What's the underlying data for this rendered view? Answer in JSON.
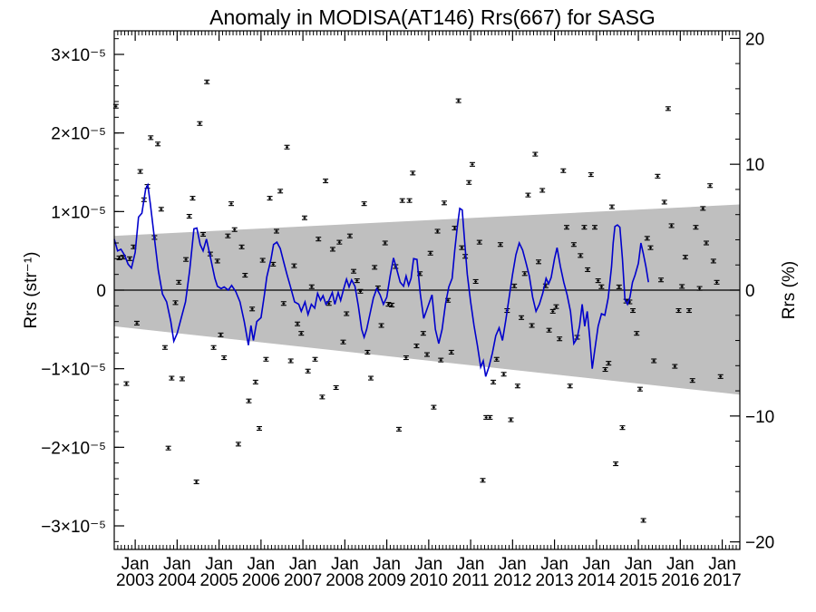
{
  "chart_data": {
    "type": "scatter",
    "title": "Anomaly in MODISA(AT146) Rrs(667) for SASG",
    "ylabel_left": "Rrs (str⁻¹)",
    "ylabel_right": "Rrs (%)",
    "xlim": [
      2002.5,
      2017.42
    ],
    "ylim": [
      -3.3e-05,
      3.3e-05
    ],
    "ylim_right": [
      -20.6,
      20.6
    ],
    "left_ticks": [
      {
        "value": 3e-05,
        "label": "3×10⁻⁵"
      },
      {
        "value": 2e-05,
        "label": "2×10⁻⁵"
      },
      {
        "value": 1e-05,
        "label": "1×10⁻⁵"
      },
      {
        "value": 0,
        "label": "0"
      },
      {
        "value": -1e-05,
        "label": "−1×10⁻⁵"
      },
      {
        "value": -2e-05,
        "label": "−2×10⁻⁵"
      },
      {
        "value": -3e-05,
        "label": "−3×10⁻⁵"
      }
    ],
    "right_ticks": [
      {
        "value": 20,
        "label": "20"
      },
      {
        "value": 10,
        "label": "10"
      },
      {
        "value": 0,
        "label": "0"
      },
      {
        "value": -10,
        "label": "−10"
      },
      {
        "value": -20,
        "label": "−20"
      }
    ],
    "x_month_label": "Jan",
    "x_years": [
      2003,
      2004,
      2005,
      2006,
      2007,
      2008,
      2009,
      2010,
      2011,
      2012,
      2013,
      2014,
      2015,
      2016,
      2017
    ],
    "band": {
      "start": 2002.5,
      "end": 2017.42,
      "upper": [
        6.9e-06,
        1.09e-05
      ],
      "lower": [
        -4.6e-06,
        -1.33e-05
      ]
    },
    "zero_line": 0,
    "colors": {
      "points": "#000000",
      "smooth": "#0000cc",
      "band": "#bfbfbf"
    },
    "points": [
      [
        2002.54,
        2.34e-05
      ],
      [
        2002.62,
        4.1e-06
      ],
      [
        2002.71,
        4.2e-06
      ],
      [
        2002.79,
        -1.19e-05
      ],
      [
        2002.87,
        4e-06
      ],
      [
        2002.96,
        5.5e-06
      ],
      [
        2003.04,
        -4.2e-06
      ],
      [
        2003.12,
        1.51e-05
      ],
      [
        2003.21,
        1.15e-05
      ],
      [
        2003.29,
        1.32e-05
      ],
      [
        2003.37,
        1.94e-05
      ],
      [
        2003.46,
        6.7e-06
      ],
      [
        2003.54,
        1.86e-05
      ],
      [
        2003.62,
        1.03e-05
      ],
      [
        2003.71,
        -7.3e-06
      ],
      [
        2003.79,
        -2.01e-05
      ],
      [
        2003.87,
        -1.12e-05
      ],
      [
        2003.96,
        -1.6e-06
      ],
      [
        2004.04,
        1e-06
      ],
      [
        2004.12,
        -1.13e-05
      ],
      [
        2004.21,
        3.9e-06
      ],
      [
        2004.29,
        9.4e-06
      ],
      [
        2004.37,
        1.17e-05
      ],
      [
        2004.46,
        -2.44e-05
      ],
      [
        2004.54,
        2.12e-05
      ],
      [
        2004.62,
        7.1e-06
      ],
      [
        2004.71,
        2.65e-05
      ],
      [
        2004.79,
        4.6e-06
      ],
      [
        2004.87,
        -7.3e-06
      ],
      [
        2004.96,
        3.7e-06
      ],
      [
        2005.04,
        -5.7e-06
      ],
      [
        2005.12,
        -8.6e-06
      ],
      [
        2005.21,
        6.9e-06
      ],
      [
        2005.29,
        1.1e-05
      ],
      [
        2005.37,
        7.7e-06
      ],
      [
        2005.46,
        -1.96e-05
      ],
      [
        2005.54,
        5.5e-06
      ],
      [
        2005.62,
        1.9e-06
      ],
      [
        2005.71,
        -1.41e-05
      ],
      [
        2005.79,
        -2.4e-06
      ],
      [
        2005.87,
        -1.17e-05
      ],
      [
        2005.96,
        -1.76e-05
      ],
      [
        2006.04,
        3.8e-06
      ],
      [
        2006.12,
        -8.8e-06
      ],
      [
        2006.21,
        1.17e-05
      ],
      [
        2006.29,
        3.3e-06
      ],
      [
        2006.37,
        7.5e-06
      ],
      [
        2006.46,
        1.26e-05
      ],
      [
        2006.54,
        -1.7e-06
      ],
      [
        2006.62,
        1.82e-05
      ],
      [
        2006.71,
        -9e-06
      ],
      [
        2006.79,
        3.1e-06
      ],
      [
        2006.87,
        -4.3e-06
      ],
      [
        2006.96,
        -5.5e-06
      ],
      [
        2007.04,
        9.2e-06
      ],
      [
        2007.12,
        -1.03e-05
      ],
      [
        2007.21,
        4.3e-07
      ],
      [
        2007.29,
        -8.8e-06
      ],
      [
        2007.37,
        6.5e-06
      ],
      [
        2007.46,
        -1.36e-05
      ],
      [
        2007.54,
        1.39e-05
      ],
      [
        2007.62,
        -1.7e-06
      ],
      [
        2007.71,
        5.2e-06
      ],
      [
        2007.79,
        -1.24e-05
      ],
      [
        2007.87,
        6.1e-06
      ],
      [
        2007.96,
        -6.6e-06
      ],
      [
        2008.04,
        -3e-06
      ],
      [
        2008.12,
        6.9e-06
      ],
      [
        2008.21,
        2.4e-06
      ],
      [
        2008.29,
        1.2e-06
      ],
      [
        2008.37,
        -1.5e-07
      ],
      [
        2008.46,
        1.1e-05
      ],
      [
        2008.54,
        -7.9e-06
      ],
      [
        2008.62,
        -1.12e-05
      ],
      [
        2008.71,
        2.9e-06
      ],
      [
        2008.79,
        2.9e-07
      ],
      [
        2008.87,
        -4.5e-06
      ],
      [
        2008.96,
        6e-06
      ],
      [
        2009.04,
        -1.8e-06
      ],
      [
        2009.12,
        -1.9e-06
      ],
      [
        2009.21,
        3e-06
      ],
      [
        2009.29,
        -1.77e-05
      ],
      [
        2009.37,
        1.14e-05
      ],
      [
        2009.46,
        -8.6e-06
      ],
      [
        2009.54,
        1.14e-05
      ],
      [
        2009.62,
        1.49e-05
      ],
      [
        2009.71,
        -7.1e-06
      ],
      [
        2009.79,
        2.1e-06
      ],
      [
        2009.87,
        -5.5e-06
      ],
      [
        2009.96,
        -8.2e-06
      ],
      [
        2010.04,
        4.7e-06
      ],
      [
        2010.12,
        -1.49e-05
      ],
      [
        2010.21,
        7.5e-06
      ],
      [
        2010.29,
        -8.9e-06
      ],
      [
        2010.37,
        1.11e-05
      ],
      [
        2010.46,
        -1.3e-06
      ],
      [
        2010.54,
        -7.9e-06
      ],
      [
        2010.62,
        7.9e-06
      ],
      [
        2010.71,
        2.41e-05
      ],
      [
        2010.79,
        5.4e-06
      ],
      [
        2010.87,
        4.3e-06
      ],
      [
        2010.96,
        1.37e-05
      ],
      [
        2011.04,
        1.6e-05
      ],
      [
        2011.12,
        1.1e-06
      ],
      [
        2011.21,
        6.1e-06
      ],
      [
        2011.29,
        -2.42e-05
      ],
      [
        2011.37,
        -1.62e-05
      ],
      [
        2011.46,
        -1.62e-05
      ],
      [
        2011.54,
        -1.17e-05
      ],
      [
        2011.62,
        -8.8e-06
      ],
      [
        2011.71,
        5.8e-06
      ],
      [
        2011.79,
        -1.07e-05
      ],
      [
        2011.87,
        -2.6e-06
      ],
      [
        2011.96,
        -1.65e-05
      ],
      [
        2012.04,
        5.3e-07
      ],
      [
        2012.12,
        -1.22e-05
      ],
      [
        2012.21,
        -3.5e-06
      ],
      [
        2012.29,
        2.1e-06
      ],
      [
        2012.37,
        1.21e-05
      ],
      [
        2012.46,
        -4.5e-06
      ],
      [
        2012.54,
        1.73e-05
      ],
      [
        2012.62,
        3.6e-06
      ],
      [
        2012.71,
        1.27e-05
      ],
      [
        2012.79,
        5.5e-07
      ],
      [
        2012.87,
        -5.1e-06
      ],
      [
        2012.96,
        -2.7e-06
      ],
      [
        2013.04,
        -2.1e-06
      ],
      [
        2013.12,
        -6.2e-06
      ],
      [
        2013.21,
        1.52e-05
      ],
      [
        2013.29,
        8e-06
      ],
      [
        2013.37,
        -1.22e-05
      ],
      [
        2013.46,
        5.8e-06
      ],
      [
        2013.54,
        -6e-06
      ],
      [
        2013.62,
        4.4e-06
      ],
      [
        2013.71,
        8e-06
      ],
      [
        2013.79,
        2.6e-06
      ],
      [
        2013.87,
        1.47e-05
      ],
      [
        2013.96,
        8e-06
      ],
      [
        2014.04,
        1.2e-06
      ],
      [
        2014.12,
        4.3e-07
      ],
      [
        2014.21,
        -1.01e-05
      ],
      [
        2014.29,
        -9.3e-06
      ],
      [
        2014.37,
        1.06e-05
      ],
      [
        2014.46,
        -2.21e-05
      ],
      [
        2014.54,
        4.1e-07
      ],
      [
        2014.62,
        -1.75e-05
      ],
      [
        2014.71,
        -1.4e-06
      ],
      [
        2014.79,
        -1.5e-06
      ],
      [
        2014.87,
        -2.6e-06
      ],
      [
        2014.96,
        -5.5e-06
      ],
      [
        2015.04,
        -1.26e-05
      ],
      [
        2015.12,
        -2.93e-05
      ],
      [
        2015.21,
        6.6e-06
      ],
      [
        2015.29,
        5.4e-06
      ],
      [
        2015.37,
        -9e-06
      ],
      [
        2015.46,
        1.45e-05
      ],
      [
        2015.54,
        1.3e-06
      ],
      [
        2015.62,
        1.12e-05
      ],
      [
        2015.71,
        2.31e-05
      ],
      [
        2015.79,
        8.2e-06
      ],
      [
        2015.87,
        -9.7e-06
      ],
      [
        2015.96,
        -2.6e-06
      ],
      [
        2016.04,
        4.7e-07
      ],
      [
        2016.12,
        4.2e-06
      ],
      [
        2016.21,
        -2.6e-06
      ],
      [
        2016.29,
        -1.15e-05
      ],
      [
        2016.37,
        8e-06
      ],
      [
        2016.46,
        2.2e-07
      ],
      [
        2016.54,
        1.04e-05
      ],
      [
        2016.62,
        6e-06
      ],
      [
        2016.71,
        1.33e-05
      ],
      [
        2016.79,
        3.7e-06
      ],
      [
        2016.87,
        1e-06
      ],
      [
        2016.96,
        -1.1e-05
      ]
    ],
    "smooth": [
      [
        2002.5,
        6.5e-06
      ],
      [
        2002.58,
        5e-06
      ],
      [
        2002.66,
        5.2e-06
      ],
      [
        2002.75,
        4.4e-06
      ],
      [
        2002.83,
        3.3e-06
      ],
      [
        2002.91,
        2.8e-06
      ],
      [
        2003.0,
        4.8e-06
      ],
      [
        2003.08,
        9.3e-06
      ],
      [
        2003.16,
        9.8e-06
      ],
      [
        2003.25,
        1.29e-05
      ],
      [
        2003.3,
        1.34e-05
      ],
      [
        2003.36,
        1.1e-05
      ],
      [
        2003.45,
        7e-06
      ],
      [
        2003.55,
        2.5e-06
      ],
      [
        2003.65,
        -5e-07
      ],
      [
        2003.75,
        -1.5e-06
      ],
      [
        2003.85,
        -4e-06
      ],
      [
        2003.92,
        -6.5e-06
      ],
      [
        2004.0,
        -5.5e-06
      ],
      [
        2004.1,
        -3.5e-06
      ],
      [
        2004.2,
        -1.5e-06
      ],
      [
        2004.3,
        2.5e-06
      ],
      [
        2004.4,
        7.8e-06
      ],
      [
        2004.47,
        7.9e-06
      ],
      [
        2004.55,
        5.8e-06
      ],
      [
        2004.62,
        5e-06
      ],
      [
        2004.7,
        6.5e-06
      ],
      [
        2004.8,
        4e-06
      ],
      [
        2004.9,
        1.5e-06
      ],
      [
        2004.96,
        5e-07
      ],
      [
        2005.05,
        2e-07
      ],
      [
        2005.12,
        4e-07
      ],
      [
        2005.22,
        0
      ],
      [
        2005.3,
        6e-07
      ],
      [
        2005.4,
        -2e-07
      ],
      [
        2005.5,
        -1.5e-06
      ],
      [
        2005.6,
        -4e-06
      ],
      [
        2005.7,
        -7e-06
      ],
      [
        2005.76,
        -4.5e-06
      ],
      [
        2005.82,
        -6.4e-06
      ],
      [
        2005.9,
        -4e-06
      ],
      [
        2006.0,
        -3.5e-06
      ],
      [
        2006.08,
        -6e-07
      ],
      [
        2006.14,
        1.7e-06
      ],
      [
        2006.24,
        4e-06
      ],
      [
        2006.3,
        5.8e-06
      ],
      [
        2006.38,
        6.1e-06
      ],
      [
        2006.46,
        5.3e-06
      ],
      [
        2006.55,
        3.4e-06
      ],
      [
        2006.62,
        2e-06
      ],
      [
        2006.7,
        5e-07
      ],
      [
        2006.8,
        -1.5e-06
      ],
      [
        2006.9,
        -1.8e-06
      ],
      [
        2006.96,
        -2.7e-06
      ],
      [
        2007.05,
        -1.5e-06
      ],
      [
        2007.12,
        -3.1e-06
      ],
      [
        2007.2,
        -1.8e-06
      ],
      [
        2007.28,
        -2.3e-06
      ],
      [
        2007.35,
        -4e-07
      ],
      [
        2007.42,
        -1.3e-06
      ],
      [
        2007.48,
        -7e-07
      ],
      [
        2007.55,
        -1.8e-06
      ],
      [
        2007.62,
        -1.3e-06
      ],
      [
        2007.7,
        -3e-07
      ],
      [
        2007.76,
        -1.8e-06
      ],
      [
        2007.84,
        -3e-07
      ],
      [
        2007.9,
        -1.3e-06
      ],
      [
        2007.98,
        3e-07
      ],
      [
        2008.04,
        1.4e-06
      ],
      [
        2008.1,
        4e-07
      ],
      [
        2008.16,
        1.3e-06
      ],
      [
        2008.24,
        5e-07
      ],
      [
        2008.32,
        -2e-06
      ],
      [
        2008.4,
        -5e-06
      ],
      [
        2008.46,
        -6e-06
      ],
      [
        2008.52,
        -5e-06
      ],
      [
        2008.6,
        -3e-06
      ],
      [
        2008.68,
        -1e-06
      ],
      [
        2008.76,
        2e-07
      ],
      [
        2008.84,
        -6e-07
      ],
      [
        2008.92,
        -1.8e-06
      ],
      [
        2009.0,
        -9e-07
      ],
      [
        2009.08,
        1.8e-06
      ],
      [
        2009.16,
        4.1e-06
      ],
      [
        2009.24,
        2.6e-06
      ],
      [
        2009.32,
        1e-06
      ],
      [
        2009.4,
        5e-07
      ],
      [
        2009.46,
        1.8e-06
      ],
      [
        2009.52,
        6e-07
      ],
      [
        2009.58,
        1.5e-06
      ],
      [
        2009.64,
        4e-06
      ],
      [
        2009.72,
        3.9e-06
      ],
      [
        2009.8,
        -5e-07
      ],
      [
        2009.88,
        -3.6e-06
      ],
      [
        2009.94,
        -2.7e-06
      ],
      [
        2010.0,
        -1.8e-06
      ],
      [
        2010.08,
        -6e-07
      ],
      [
        2010.16,
        -5e-06
      ],
      [
        2010.24,
        -6.8e-06
      ],
      [
        2010.32,
        -5e-06
      ],
      [
        2010.4,
        -1.8e-06
      ],
      [
        2010.48,
        4e-07
      ],
      [
        2010.56,
        1.5e-06
      ],
      [
        2010.62,
        5e-06
      ],
      [
        2010.68,
        8e-06
      ],
      [
        2010.74,
        1.04e-05
      ],
      [
        2010.8,
        1.02e-05
      ],
      [
        2010.86,
        6e-06
      ],
      [
        2010.92,
        2e-06
      ],
      [
        2011.0,
        -1.5e-06
      ],
      [
        2011.08,
        -4.5e-06
      ],
      [
        2011.16,
        -7e-06
      ],
      [
        2011.24,
        -9.8e-06
      ],
      [
        2011.3,
        -9e-06
      ],
      [
        2011.36,
        -1.1e-05
      ],
      [
        2011.44,
        -9.7e-06
      ],
      [
        2011.52,
        -8e-06
      ],
      [
        2011.6,
        -5.8e-06
      ],
      [
        2011.68,
        -4.8e-06
      ],
      [
        2011.76,
        -6.4e-06
      ],
      [
        2011.84,
        -3.8e-06
      ],
      [
        2011.92,
        -9e-07
      ],
      [
        2012.0,
        2e-06
      ],
      [
        2012.08,
        4.5e-06
      ],
      [
        2012.16,
        6e-06
      ],
      [
        2012.24,
        5.1e-06
      ],
      [
        2012.32,
        3.5e-06
      ],
      [
        2012.4,
        1.8e-06
      ],
      [
        2012.48,
        -9e-07
      ],
      [
        2012.56,
        -2.7e-06
      ],
      [
        2012.64,
        -1.8e-06
      ],
      [
        2012.72,
        -4e-07
      ],
      [
        2012.8,
        1.5e-06
      ],
      [
        2012.86,
        8e-07
      ],
      [
        2012.92,
        1.6e-06
      ],
      [
        2013.0,
        4e-06
      ],
      [
        2013.06,
        5.4e-06
      ],
      [
        2013.14,
        3e-06
      ],
      [
        2013.22,
        1e-06
      ],
      [
        2013.3,
        -6e-07
      ],
      [
        2013.38,
        -2.7e-06
      ],
      [
        2013.46,
        -6.8e-06
      ],
      [
        2013.54,
        -6.1e-06
      ],
      [
        2013.6,
        -4.5e-06
      ],
      [
        2013.66,
        -1.8e-06
      ],
      [
        2013.72,
        -4.6e-06
      ],
      [
        2013.78,
        -2.7e-06
      ],
      [
        2013.84,
        -6e-06
      ],
      [
        2013.9,
        -1e-05
      ],
      [
        2013.96,
        -7.6e-06
      ],
      [
        2014.04,
        -4.6e-06
      ],
      [
        2014.12,
        -3e-06
      ],
      [
        2014.2,
        -3.2e-06
      ],
      [
        2014.28,
        -1e-06
      ],
      [
        2014.36,
        3e-06
      ],
      [
        2014.4,
        6e-06
      ],
      [
        2014.44,
        8.1e-06
      ],
      [
        2014.5,
        8.3e-06
      ],
      [
        2014.56,
        8e-06
      ],
      [
        2014.62,
        4e-06
      ],
      [
        2014.68,
        -1.2e-06
      ],
      [
        2014.74,
        -1.8e-06
      ],
      [
        2014.8,
        -9e-07
      ],
      [
        2014.86,
        1e-06
      ],
      [
        2014.92,
        1.9e-06
      ],
      [
        2015.0,
        3.4e-06
      ],
      [
        2015.06,
        6e-06
      ],
      [
        2015.12,
        4.6e-06
      ],
      [
        2015.18,
        3e-06
      ],
      [
        2015.24,
        1e-06
      ]
    ]
  }
}
